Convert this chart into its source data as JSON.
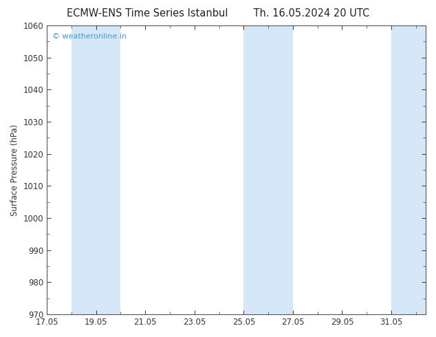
{
  "title_left": "ECMW-ENS Time Series Istanbul",
  "title_right": "Th. 16.05.2024 20 UTC",
  "ylabel": "Surface Pressure (hPa)",
  "ylim": [
    970,
    1060
  ],
  "yticks": [
    970,
    980,
    990,
    1000,
    1010,
    1020,
    1030,
    1040,
    1050,
    1060
  ],
  "xlim_start": 17,
  "xlim_end": 32.4,
  "xtick_labels": [
    "17.05",
    "19.05",
    "21.05",
    "23.05",
    "25.05",
    "27.05",
    "29.05",
    "31.05"
  ],
  "xtick_positions": [
    17,
    19,
    21,
    23,
    25,
    27,
    29,
    31
  ],
  "shaded_bands": [
    {
      "x_start": 18,
      "x_end": 19
    },
    {
      "x_start": 19,
      "x_end": 20
    },
    {
      "x_start": 25,
      "x_end": 26
    },
    {
      "x_start": 26,
      "x_end": 27
    },
    {
      "x_start": 31,
      "x_end": 32.4
    }
  ],
  "band_color": "#d6e8f7",
  "background_color": "#ffffff",
  "watermark_text": "© weatheronline.in",
  "watermark_color": "#4499cc",
  "watermark_fontsize": 8,
  "title_fontsize": 10.5,
  "tick_fontsize": 8.5,
  "ylabel_fontsize": 8.5,
  "spine_color": "#555555",
  "tick_color": "#333333"
}
